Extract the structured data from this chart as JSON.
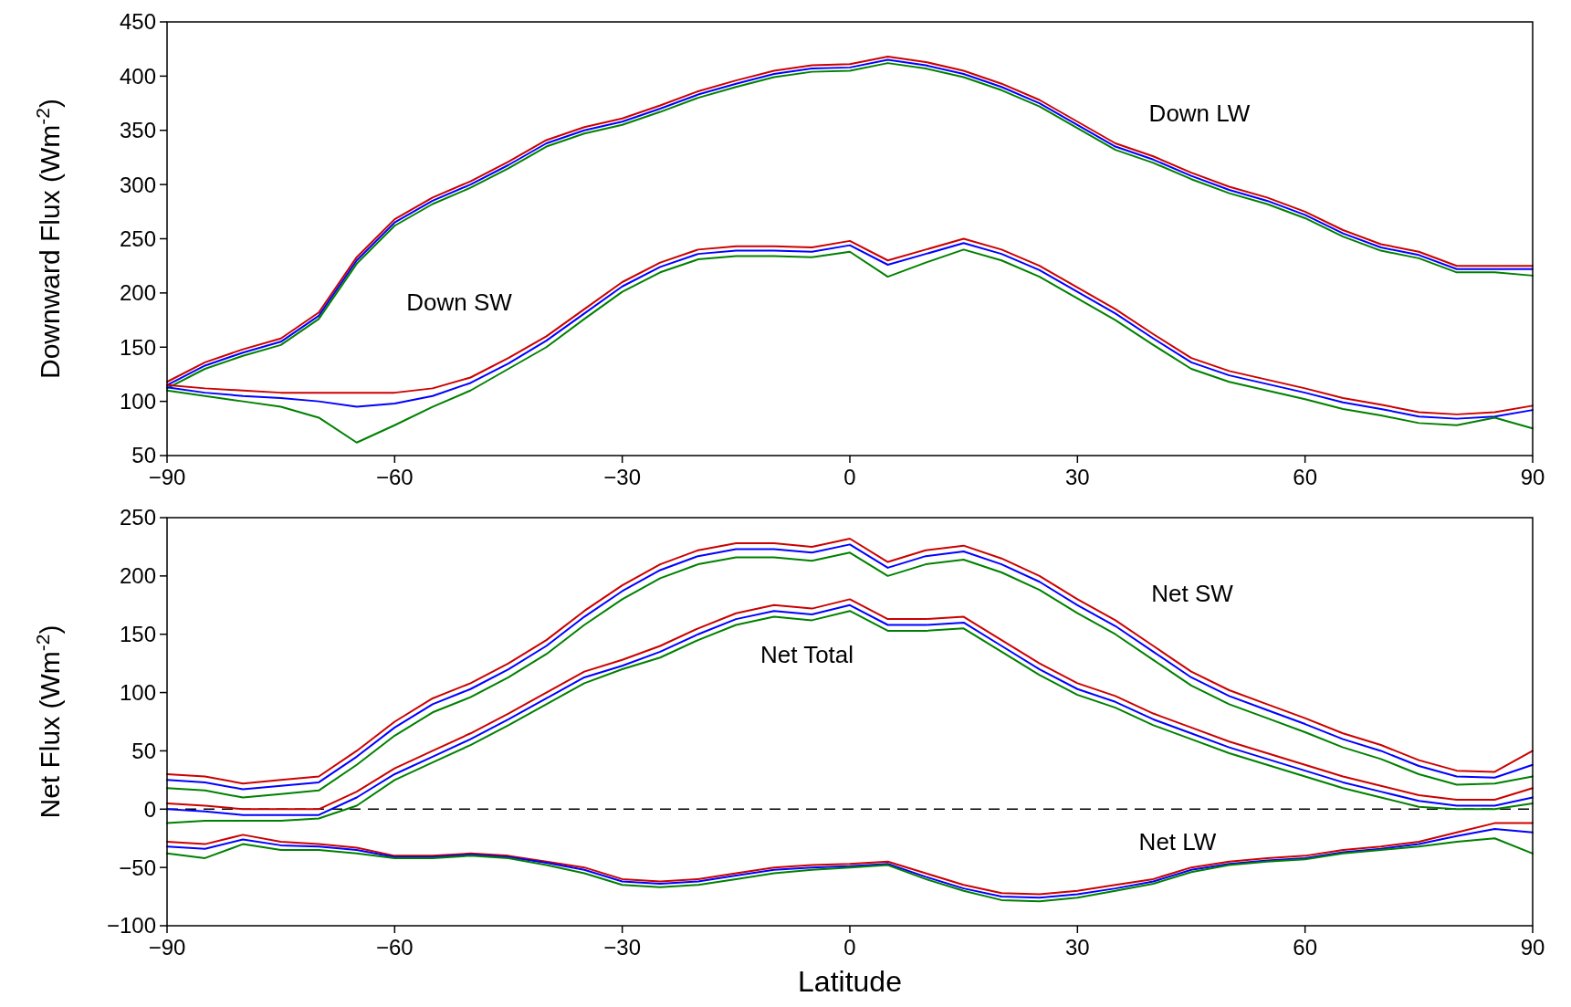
{
  "chart_data": [
    {
      "type": "line",
      "ylabel": "Downward Flux (Wm$^{-2}$)",
      "xlim": [
        -90,
        90
      ],
      "xticks": [
        -90,
        -60,
        -30,
        0,
        30,
        60,
        90
      ],
      "ylim": [
        50,
        450
      ],
      "yticks": [
        50,
        100,
        150,
        200,
        250,
        300,
        350,
        400,
        450
      ],
      "grid": false,
      "x": [
        -90,
        -85,
        -80,
        -75,
        -70,
        -65,
        -60,
        -55,
        -50,
        -45,
        -40,
        -35,
        -30,
        -25,
        -20,
        -15,
        -10,
        -5,
        0,
        5,
        10,
        15,
        20,
        25,
        30,
        35,
        40,
        45,
        50,
        55,
        60,
        65,
        70,
        75,
        80,
        85,
        90
      ],
      "series": [
        {
          "color": "#cc0000",
          "values": [
            118,
            136,
            148,
            158,
            182,
            233,
            268,
            288,
            303,
            321,
            341,
            353,
            361,
            373,
            386,
            396,
            405,
            410,
            411,
            418,
            413,
            405,
            393,
            378,
            358,
            338,
            326,
            311,
            298,
            288,
            275,
            258,
            245,
            238,
            225,
            225,
            225
          ]
        },
        {
          "color": "#0000ff",
          "values": [
            115,
            133,
            145,
            155,
            179,
            230,
            265,
            285,
            300,
            318,
            338,
            350,
            358,
            370,
            383,
            393,
            402,
            407,
            408,
            415,
            410,
            402,
            390,
            375,
            355,
            335,
            323,
            308,
            295,
            285,
            272,
            255,
            242,
            235,
            222,
            222,
            222
          ]
        },
        {
          "color": "#008000",
          "values": [
            112,
            130,
            142,
            152,
            176,
            227,
            262,
            282,
            297,
            315,
            335,
            347,
            355,
            367,
            380,
            390,
            399,
            404,
            405,
            412,
            407,
            399,
            387,
            372,
            352,
            332,
            320,
            305,
            292,
            282,
            269,
            252,
            239,
            232,
            219,
            219,
            216
          ]
        },
        {
          "color": "#cc0000",
          "values": [
            115,
            112,
            110,
            108,
            108,
            108,
            108,
            112,
            122,
            140,
            160,
            185,
            210,
            228,
            240,
            243,
            243,
            242,
            248,
            230,
            240,
            250,
            240,
            225,
            205,
            185,
            162,
            140,
            128,
            120,
            112,
            103,
            97,
            90,
            88,
            90,
            96
          ]
        },
        {
          "color": "#0000ff",
          "values": [
            113,
            108,
            105,
            103,
            100,
            95,
            98,
            105,
            117,
            135,
            156,
            181,
            206,
            224,
            236,
            239,
            239,
            238,
            244,
            226,
            236,
            246,
            236,
            221,
            201,
            181,
            158,
            136,
            124,
            116,
            108,
            99,
            93,
            86,
            84,
            86,
            92
          ]
        },
        {
          "color": "#008000",
          "values": [
            110,
            105,
            100,
            95,
            85,
            62,
            78,
            95,
            110,
            130,
            150,
            176,
            201,
            219,
            231,
            234,
            234,
            233,
            238,
            215,
            228,
            240,
            230,
            215,
            195,
            175,
            152,
            130,
            118,
            110,
            102,
            93,
            87,
            80,
            78,
            85,
            75
          ]
        }
      ],
      "annotations": [
        "Down LW",
        "Down SW"
      ]
    },
    {
      "type": "line",
      "xlabel": "Latitude",
      "ylabel": "Net Flux (Wm$^{-2}$)",
      "xlim": [
        -90,
        90
      ],
      "xticks": [
        -90,
        -60,
        -30,
        0,
        30,
        60,
        90
      ],
      "ylim": [
        -100,
        250
      ],
      "yticks": [
        -100,
        -50,
        0,
        50,
        100,
        150,
        200,
        250
      ],
      "grid": false,
      "x": [
        -90,
        -85,
        -80,
        -75,
        -70,
        -65,
        -60,
        -55,
        -50,
        -45,
        -40,
        -35,
        -30,
        -25,
        -20,
        -15,
        -10,
        -5,
        0,
        5,
        10,
        15,
        20,
        25,
        30,
        35,
        40,
        45,
        50,
        55,
        60,
        65,
        70,
        75,
        80,
        85,
        90
      ],
      "series": [
        {
          "color": "#cc0000",
          "values": [
            30,
            28,
            22,
            25,
            28,
            50,
            75,
            95,
            108,
            125,
            145,
            170,
            192,
            210,
            222,
            228,
            228,
            225,
            232,
            212,
            222,
            226,
            215,
            200,
            180,
            162,
            140,
            118,
            102,
            90,
            78,
            65,
            55,
            42,
            33,
            32,
            50
          ]
        },
        {
          "color": "#0000ff",
          "values": [
            25,
            23,
            17,
            20,
            23,
            45,
            70,
            90,
            103,
            120,
            140,
            165,
            187,
            205,
            217,
            223,
            223,
            220,
            227,
            207,
            217,
            221,
            210,
            195,
            175,
            157,
            135,
            113,
            97,
            85,
            73,
            60,
            50,
            37,
            28,
            27,
            38
          ]
        },
        {
          "color": "#008000",
          "values": [
            18,
            16,
            10,
            13,
            16,
            38,
            63,
            83,
            96,
            113,
            133,
            158,
            180,
            198,
            210,
            216,
            216,
            213,
            220,
            200,
            210,
            214,
            203,
            188,
            168,
            150,
            128,
            106,
            90,
            78,
            66,
            53,
            43,
            30,
            21,
            22,
            28
          ]
        },
        {
          "color": "#cc0000",
          "values": [
            5,
            3,
            0,
            0,
            0,
            15,
            35,
            50,
            65,
            82,
            100,
            118,
            128,
            140,
            155,
            168,
            175,
            172,
            180,
            163,
            163,
            165,
            145,
            125,
            108,
            97,
            82,
            70,
            58,
            48,
            38,
            28,
            20,
            12,
            8,
            8,
            18
          ]
        },
        {
          "color": "#0000ff",
          "values": [
            0,
            -2,
            -5,
            -5,
            -5,
            10,
            30,
            45,
            60,
            77,
            95,
            113,
            123,
            135,
            150,
            163,
            170,
            167,
            175,
            158,
            158,
            160,
            140,
            120,
            103,
            92,
            77,
            65,
            53,
            43,
            33,
            23,
            15,
            7,
            3,
            3,
            10
          ]
        },
        {
          "color": "#008000",
          "values": [
            -12,
            -10,
            -10,
            -10,
            -8,
            3,
            25,
            40,
            55,
            72,
            90,
            108,
            120,
            130,
            145,
            158,
            165,
            162,
            170,
            153,
            153,
            155,
            135,
            115,
            98,
            87,
            72,
            60,
            48,
            38,
            28,
            18,
            10,
            2,
            0,
            0,
            5
          ]
        },
        {
          "color": "#cc0000",
          "values": [
            -28,
            -30,
            -22,
            -28,
            -30,
            -33,
            -40,
            -40,
            -38,
            -40,
            -45,
            -50,
            -60,
            -62,
            -60,
            -55,
            -50,
            -48,
            -47,
            -45,
            -55,
            -65,
            -72,
            -73,
            -70,
            -65,
            -60,
            -50,
            -45,
            -42,
            -40,
            -35,
            -32,
            -28,
            -20,
            -12,
            -12
          ]
        },
        {
          "color": "#0000ff",
          "values": [
            -32,
            -34,
            -26,
            -31,
            -32,
            -35,
            -41,
            -41,
            -39,
            -41,
            -46,
            -52,
            -62,
            -64,
            -62,
            -57,
            -52,
            -50,
            -49,
            -47,
            -58,
            -68,
            -75,
            -76,
            -73,
            -68,
            -62,
            -52,
            -47,
            -44,
            -42,
            -37,
            -34,
            -30,
            -23,
            -17,
            -20
          ]
        },
        {
          "color": "#008000",
          "values": [
            -38,
            -42,
            -30,
            -35,
            -35,
            -38,
            -42,
            -42,
            -40,
            -42,
            -48,
            -55,
            -65,
            -67,
            -65,
            -60,
            -55,
            -52,
            -50,
            -48,
            -60,
            -70,
            -78,
            -79,
            -76,
            -70,
            -64,
            -54,
            -48,
            -45,
            -43,
            -38,
            -35,
            -32,
            -28,
            -25,
            -38
          ]
        }
      ],
      "ref_lines": [
        {
          "axis": "y",
          "value": 0,
          "color": "#000000",
          "line_style": "dashed"
        }
      ],
      "annotations": [
        "Net SW",
        "Net Total",
        "Net LW"
      ]
    }
  ]
}
